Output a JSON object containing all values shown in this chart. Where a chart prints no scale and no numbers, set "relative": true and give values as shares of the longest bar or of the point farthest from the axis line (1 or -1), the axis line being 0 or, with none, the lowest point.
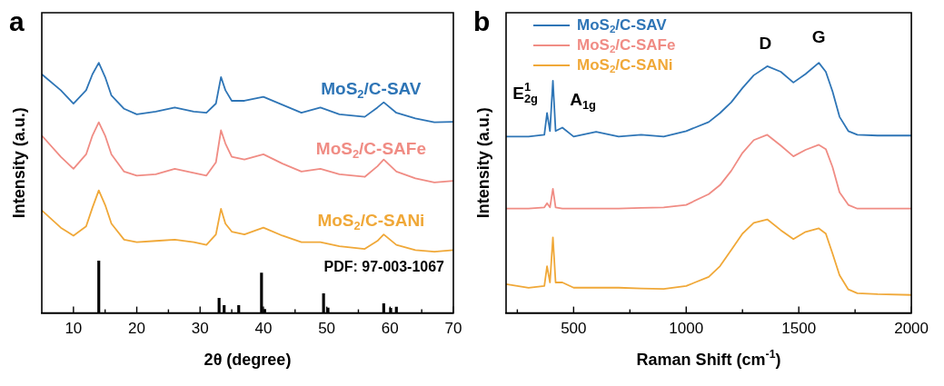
{
  "chart_data": [
    {
      "type": "line",
      "title": "a",
      "xlabel": "2θ (degree)",
      "ylabel": "Intensity (a.u.)",
      "relative": true,
      "grid": false,
      "legend": false,
      "xlim": [
        5,
        70
      ],
      "xticks": [
        10,
        {
          "value": 15,
          "label": null
        },
        20,
        {
          "value": 25,
          "label": null
        },
        30,
        {
          "value": 35,
          "label": null
        },
        40,
        {
          "value": 45,
          "label": null
        },
        50,
        {
          "value": 55,
          "label": null
        },
        60,
        {
          "value": 65,
          "label": null
        },
        70
      ],
      "x": [
        5,
        8,
        10,
        12,
        13,
        14,
        15,
        16,
        18,
        20,
        23,
        26,
        29,
        31,
        32.5,
        33.3,
        34,
        35,
        37,
        40,
        43,
        46,
        49,
        52,
        56,
        58,
        59,
        61,
        64,
        67,
        70
      ],
      "series": [
        {
          "name": "MoS$_{2}$/C-SAV",
          "color": "#2e75b6",
          "values": [
            0.954,
            0.89,
            0.837,
            0.89,
            0.954,
            1.0,
            0.943,
            0.869,
            0.816,
            0.794,
            0.805,
            0.821,
            0.805,
            0.8,
            0.837,
            0.943,
            0.89,
            0.848,
            0.848,
            0.864,
            0.832,
            0.8,
            0.821,
            0.794,
            0.784,
            0.821,
            0.842,
            0.8,
            0.778,
            0.762,
            0.764
          ]
        },
        {
          "name": "MoS$_{2}$/C-SAFe",
          "color": "#f08c84",
          "values": [
            0.709,
            0.624,
            0.576,
            0.634,
            0.709,
            0.762,
            0.709,
            0.634,
            0.565,
            0.549,
            0.554,
            0.576,
            0.56,
            0.549,
            0.602,
            0.73,
            0.677,
            0.624,
            0.613,
            0.634,
            0.597,
            0.565,
            0.576,
            0.554,
            0.544,
            0.586,
            0.613,
            0.565,
            0.538,
            0.522,
            0.528
          ]
        },
        {
          "name": "MoS$_{2}$/C-SANi",
          "color": "#f0a838",
          "values": [
            0.41,
            0.341,
            0.309,
            0.346,
            0.421,
            0.49,
            0.432,
            0.357,
            0.293,
            0.283,
            0.288,
            0.293,
            0.283,
            0.272,
            0.314,
            0.416,
            0.357,
            0.325,
            0.314,
            0.341,
            0.309,
            0.283,
            0.283,
            0.267,
            0.256,
            0.288,
            0.314,
            0.272,
            0.251,
            0.245,
            0.251
          ]
        },
        {
          "type": "bar",
          "color": "#000000",
          "x": [
            14.0,
            14.8,
            33.0,
            33.8,
            36.1,
            39.7,
            40.2,
            49.5,
            50.2,
            59.0,
            60.1,
            61.0
          ],
          "values": [
            0.208,
            null,
            0.059,
            0.03,
            0.03,
            0.16,
            0.015,
            0.077,
            0.02,
            0.037,
            0.019,
            0.024
          ]
        }
      ],
      "annotations": [
        "PDF: 97-003-1067"
      ]
    },
    {
      "type": "line",
      "title": "b",
      "xlabel": "Raman Shift (cm$^{-1}$)",
      "ylabel": "Intensity (a.u.)",
      "relative": true,
      "grid": false,
      "legend": "top left",
      "xlim": [
        200,
        2000
      ],
      "xticks": [
        {
          "value": 250,
          "label": null
        },
        500,
        {
          "value": 750,
          "label": null
        },
        1000,
        {
          "value": 1250,
          "label": null
        },
        1500,
        {
          "value": 1750,
          "label": null
        },
        2000
      ],
      "x": [
        200,
        300,
        370,
        382,
        395,
        408,
        420,
        450,
        500,
        600,
        700,
        800,
        900,
        1000,
        1100,
        1150,
        1200,
        1250,
        1300,
        1360,
        1420,
        1476,
        1530,
        1589,
        1620,
        1650,
        1681,
        1720,
        1760,
        1850,
        2000
      ],
      "series": [
        {
          "name": "MoS$_{2}$/C-SAV",
          "color": "#2e75b6",
          "values": [
            0.705,
            0.705,
            0.712,
            0.799,
            0.727,
            0.928,
            0.727,
            0.741,
            0.705,
            0.724,
            0.705,
            0.712,
            0.705,
            0.727,
            0.763,
            0.799,
            0.842,
            0.899,
            0.95,
            0.986,
            0.964,
            0.921,
            0.955,
            1.0,
            0.964,
            0.885,
            0.784,
            0.727,
            0.712,
            0.709,
            0.709
          ]
        },
        {
          "name": "MoS$_{2}$/C-SAFe",
          "color": "#f08c84",
          "values": [
            0.417,
            0.417,
            0.422,
            0.439,
            0.422,
            0.496,
            0.422,
            0.417,
            0.417,
            0.417,
            0.417,
            0.42,
            0.422,
            0.432,
            0.475,
            0.511,
            0.568,
            0.64,
            0.691,
            0.712,
            0.669,
            0.626,
            0.652,
            0.672,
            0.655,
            0.583,
            0.482,
            0.432,
            0.417,
            0.417,
            0.417
          ]
        },
        {
          "name": "MoS$_{2}$/C-SANi",
          "color": "#f0a838",
          "values": [
            0.115,
            0.101,
            0.108,
            0.187,
            0.122,
            0.302,
            0.122,
            0.122,
            0.101,
            0.101,
            0.101,
            0.098,
            0.096,
            0.108,
            0.144,
            0.187,
            0.252,
            0.317,
            0.36,
            0.374,
            0.331,
            0.295,
            0.324,
            0.338,
            0.317,
            0.237,
            0.151,
            0.094,
            0.079,
            0.075,
            0.072
          ]
        }
      ],
      "annotations": [
        {
          "text": "E$_{2g}$$^{1}$",
          "x": 382,
          "y": 0.799
        },
        {
          "text": "A$_{1g}$",
          "x": 408,
          "y": 0.928
        },
        {
          "text": "D",
          "x": 1360,
          "y": 0.986
        },
        {
          "text": "G",
          "x": 1589,
          "y": 1.0
        }
      ]
    }
  ]
}
